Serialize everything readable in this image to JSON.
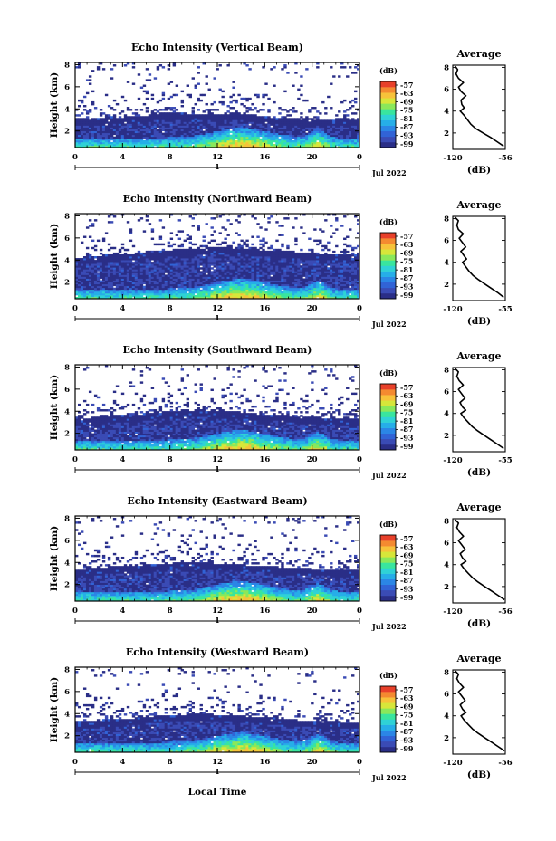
{
  "colors": {
    "colormap": [
      "#2a2e87",
      "#3a4bb5",
      "#3163d6",
      "#2b86e6",
      "#26aee8",
      "#2fd2d6",
      "#39e59e",
      "#8ae85a",
      "#d7e63a",
      "#f7c23a",
      "#f48a30",
      "#e8402a"
    ],
    "background": "#ffffff",
    "line": "#000000"
  },
  "figure": {
    "xlabel": "Local Time",
    "date_label": "Jul 2022",
    "day_label": "1"
  },
  "chart_data": [
    {
      "type": "heatmap",
      "title": "Echo Intensity (Vertical Beam)",
      "ylabel": "Height (km)",
      "x_ticks": [
        "0",
        "4",
        "8",
        "12",
        "16",
        "20",
        "0"
      ],
      "y_ticks": [
        "2",
        "4",
        "6",
        "8"
      ],
      "xlim": [
        0,
        24
      ],
      "ylim": [
        0.5,
        8.2
      ],
      "colorbar": {
        "unit": "(dB)",
        "ticks": [
          "-57",
          "-63",
          "-69",
          "-75",
          "-81",
          "-87",
          "-93",
          "-99"
        ]
      },
      "layer_top_km": [
        3.1,
        3.1,
        3.2,
        3.3,
        3.2,
        3.3,
        3.4,
        3.6,
        3.7,
        3.6,
        3.5,
        3.6,
        3.5,
        3.6,
        3.6,
        3.4,
        3.3,
        3.2,
        3.1,
        3.2,
        3.1,
        3.0,
        3.1,
        3.1,
        3.0
      ],
      "average": {
        "title": "Average",
        "xlabel": "(dB)",
        "x_ticks": [
          "-120",
          "-56"
        ],
        "y_ticks": [
          "2",
          "4",
          "6",
          "8"
        ],
        "xlim": [
          -120,
          -56
        ],
        "ylim": [
          0.5,
          8.2
        ],
        "height_km": [
          0.8,
          1.2,
          1.6,
          2.0,
          2.4,
          2.8,
          3.2,
          3.6,
          4.0,
          4.3,
          4.6,
          5.0,
          5.4,
          5.8,
          6.2,
          6.6,
          7.0,
          7.4,
          7.8,
          8.1
        ],
        "db": [
          -58,
          -66,
          -74,
          -83,
          -92,
          -98,
          -102,
          -106,
          -111,
          -106,
          -109,
          -110,
          -104,
          -110,
          -113,
          -107,
          -113,
          -116,
          -114,
          -117
        ]
      }
    },
    {
      "type": "heatmap",
      "title": "Echo Intensity (Northward Beam)",
      "ylabel": "Height (km)",
      "x_ticks": [
        "0",
        "4",
        "8",
        "12",
        "16",
        "20",
        "0"
      ],
      "y_ticks": [
        "2",
        "4",
        "6",
        "8"
      ],
      "xlim": [
        0,
        24
      ],
      "ylim": [
        0.5,
        8.2
      ],
      "colorbar": {
        "unit": "(dB)",
        "ticks": [
          "-57",
          "-63",
          "-69",
          "-75",
          "-81",
          "-87",
          "-93",
          "-99"
        ]
      },
      "layer_top_km": [
        4.2,
        4.3,
        4.4,
        4.5,
        4.6,
        4.6,
        4.7,
        4.8,
        4.9,
        5.0,
        5.1,
        5.1,
        5.2,
        5.1,
        5.1,
        5.0,
        4.9,
        4.9,
        4.8,
        4.7,
        4.6,
        4.6,
        4.5,
        4.5,
        4.4
      ],
      "average": {
        "title": "Average",
        "xlabel": "(dB)",
        "x_ticks": [
          "-120",
          "-55"
        ],
        "y_ticks": [
          "2",
          "4",
          "6",
          "8"
        ],
        "xlim": [
          -120,
          -55
        ],
        "ylim": [
          0.5,
          8.2
        ],
        "height_km": [
          0.8,
          1.2,
          1.6,
          2.0,
          2.4,
          2.8,
          3.2,
          3.6,
          4.0,
          4.3,
          4.6,
          5.0,
          5.4,
          5.8,
          6.2,
          6.6,
          7.0,
          7.4,
          7.8,
          8.1
        ],
        "db": [
          -57,
          -64,
          -72,
          -80,
          -88,
          -95,
          -100,
          -104,
          -108,
          -103,
          -106,
          -110,
          -104,
          -108,
          -112,
          -107,
          -113,
          -115,
          -113,
          -117
        ]
      }
    },
    {
      "type": "heatmap",
      "title": "Echo Intensity (Southward Beam)",
      "ylabel": "Height (km)",
      "x_ticks": [
        "0",
        "4",
        "8",
        "12",
        "16",
        "20",
        "0"
      ],
      "y_ticks": [
        "2",
        "4",
        "6",
        "8"
      ],
      "xlim": [
        0,
        24
      ],
      "ylim": [
        0.5,
        8.2
      ],
      "colorbar": {
        "unit": "(dB)",
        "ticks": [
          "-57",
          "-63",
          "-69",
          "-75",
          "-81",
          "-87",
          "-93",
          "-99"
        ]
      },
      "layer_top_km": [
        3.4,
        3.4,
        3.5,
        3.6,
        3.6,
        3.7,
        3.8,
        3.9,
        4.0,
        4.0,
        4.1,
        4.1,
        4.0,
        4.0,
        3.9,
        3.8,
        3.7,
        3.7,
        3.6,
        3.5,
        3.5,
        3.4,
        3.4,
        3.3,
        3.3
      ],
      "average": {
        "title": "Average",
        "xlabel": "(dB)",
        "x_ticks": [
          "-120",
          "-55"
        ],
        "y_ticks": [
          "2",
          "4",
          "6",
          "8"
        ],
        "xlim": [
          -120,
          -55
        ],
        "ylim": [
          0.5,
          8.2
        ],
        "height_km": [
          0.8,
          1.2,
          1.6,
          2.0,
          2.4,
          2.8,
          3.2,
          3.6,
          4.0,
          4.3,
          4.6,
          5.0,
          5.4,
          5.8,
          6.2,
          6.6,
          7.0,
          7.4,
          7.8,
          8.1
        ],
        "db": [
          -57,
          -65,
          -73,
          -81,
          -89,
          -96,
          -101,
          -106,
          -110,
          -104,
          -108,
          -111,
          -105,
          -109,
          -113,
          -107,
          -112,
          -115,
          -113,
          -117
        ]
      }
    },
    {
      "type": "heatmap",
      "title": "Echo Intensity (Eastward Beam)",
      "ylabel": "Height (km)",
      "x_ticks": [
        "0",
        "4",
        "8",
        "12",
        "16",
        "20",
        "0"
      ],
      "y_ticks": [
        "2",
        "4",
        "6",
        "8"
      ],
      "xlim": [
        0,
        24
      ],
      "ylim": [
        0.5,
        8.2
      ],
      "colorbar": {
        "unit": "(dB)",
        "ticks": [
          "-57",
          "-63",
          "-69",
          "-75",
          "-81",
          "-87",
          "-93",
          "-99"
        ]
      },
      "layer_top_km": [
        3.4,
        3.4,
        3.5,
        3.6,
        3.6,
        3.7,
        3.8,
        3.9,
        3.9,
        4.0,
        4.0,
        4.0,
        3.9,
        3.9,
        3.8,
        3.7,
        3.7,
        3.6,
        3.5,
        3.5,
        3.4,
        3.4,
        3.3,
        3.3,
        3.3
      ],
      "average": {
        "title": "Average",
        "xlabel": "(dB)",
        "x_ticks": [
          "-120",
          "-56"
        ],
        "y_ticks": [
          "2",
          "4",
          "6",
          "8"
        ],
        "xlim": [
          -120,
          -56
        ],
        "ylim": [
          0.5,
          8.2
        ],
        "height_km": [
          0.8,
          1.2,
          1.6,
          2.0,
          2.4,
          2.8,
          3.2,
          3.6,
          4.0,
          4.3,
          4.6,
          5.0,
          5.4,
          5.8,
          6.2,
          6.6,
          7.0,
          7.4,
          7.8,
          8.1
        ],
        "db": [
          -57,
          -65,
          -73,
          -81,
          -89,
          -96,
          -101,
          -106,
          -110,
          -104,
          -108,
          -111,
          -105,
          -109,
          -113,
          -107,
          -112,
          -115,
          -113,
          -117
        ]
      }
    },
    {
      "type": "heatmap",
      "title": "Echo Intensity (Westward Beam)",
      "ylabel": "Height (km)",
      "x_ticks": [
        "0",
        "4",
        "8",
        "12",
        "16",
        "20",
        "0"
      ],
      "y_ticks": [
        "2",
        "4",
        "6",
        "8"
      ],
      "xlim": [
        0,
        24
      ],
      "ylim": [
        0.5,
        8.2
      ],
      "colorbar": {
        "unit": "(dB)",
        "ticks": [
          "-57",
          "-63",
          "-69",
          "-75",
          "-81",
          "-87",
          "-93",
          "-99"
        ]
      },
      "layer_top_km": [
        3.3,
        3.3,
        3.4,
        3.5,
        3.5,
        3.6,
        3.7,
        3.8,
        3.9,
        3.9,
        4.0,
        4.0,
        3.9,
        3.9,
        3.8,
        3.7,
        3.6,
        3.6,
        3.5,
        3.4,
        3.4,
        3.3,
        3.3,
        3.2,
        3.2
      ],
      "average": {
        "title": "Average",
        "xlabel": "(dB)",
        "x_ticks": [
          "-120",
          "-56"
        ],
        "y_ticks": [
          "2",
          "4",
          "6",
          "8"
        ],
        "xlim": [
          -120,
          -56
        ],
        "ylim": [
          0.5,
          8.2
        ],
        "height_km": [
          0.8,
          1.2,
          1.6,
          2.0,
          2.4,
          2.8,
          3.2,
          3.6,
          4.0,
          4.3,
          4.6,
          5.0,
          5.4,
          5.8,
          6.2,
          6.6,
          7.0,
          7.4,
          7.8,
          8.1
        ],
        "db": [
          -57,
          -65,
          -73,
          -81,
          -89,
          -96,
          -101,
          -106,
          -110,
          -104,
          -108,
          -111,
          -105,
          -109,
          -113,
          -107,
          -112,
          -115,
          -113,
          -117
        ]
      }
    }
  ]
}
